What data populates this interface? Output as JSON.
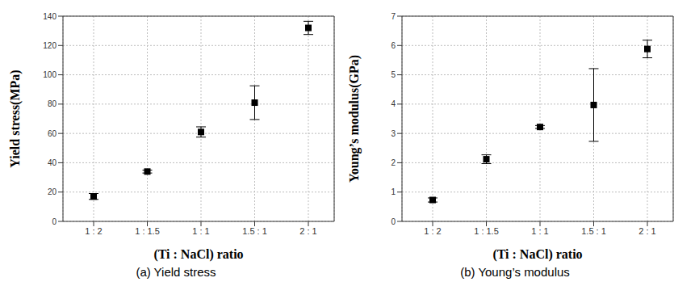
{
  "chart_data": [
    {
      "type": "scatter",
      "title": "(a) Yield stress",
      "x_label": "(Ti : NaCl) ratio",
      "y_label": "Yield stress(MPa)",
      "categories": [
        "1 : 2",
        "1 : 1.5",
        "1 : 1",
        "1.5 : 1",
        "2 : 1"
      ],
      "values": [
        17,
        34,
        61,
        81,
        132
      ],
      "errors": [
        2,
        1,
        3.5,
        11.5,
        4.5
      ],
      "color": "#000000",
      "marker": "square",
      "ylim": [
        0,
        140
      ],
      "yticks": [
        0,
        20,
        40,
        60,
        80,
        100,
        120,
        140
      ],
      "grid": true
    },
    {
      "type": "scatter",
      "title": "(b) Young’s modulus",
      "x_label": "(Ti : NaCl) ratio",
      "y_label": "Young’s modulus(GPa)",
      "categories": [
        "1 : 2",
        "1 : 1.5",
        "1 : 1",
        "1.5 : 1",
        "2 : 1"
      ],
      "values": [
        0.73,
        2.12,
        3.22,
        3.97,
        5.88
      ],
      "errors": [
        0.07,
        0.15,
        0.05,
        1.24,
        0.3
      ],
      "color": "#000000",
      "marker": "square",
      "ylim": [
        0,
        7
      ],
      "yticks": [
        0,
        1,
        2,
        3,
        4,
        5,
        6,
        7
      ],
      "grid": true
    }
  ]
}
